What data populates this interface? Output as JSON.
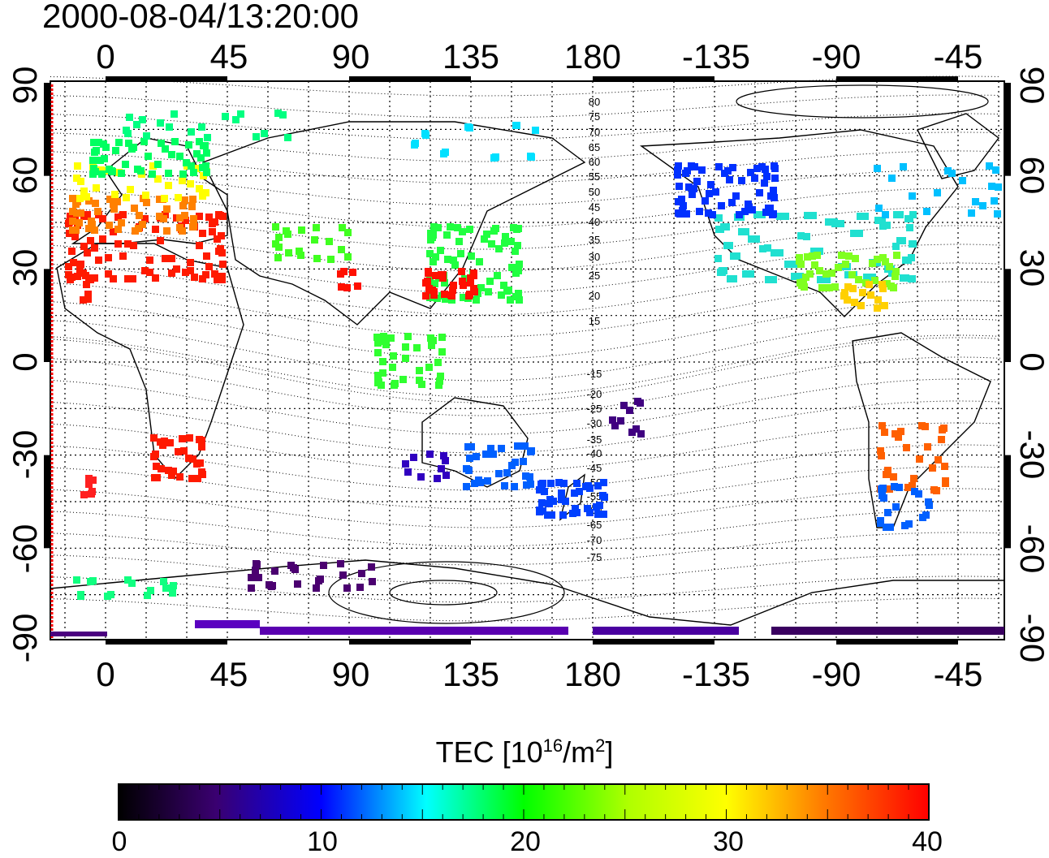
{
  "title": "2000-08-04/13:20:00",
  "map": {
    "top_axis_labels": [
      "0",
      "45",
      "90",
      "135",
      "180",
      "-135",
      "-90",
      "-45"
    ],
    "bottom_axis_labels": [
      "0",
      "45",
      "90",
      "135",
      "180",
      "-135",
      "-90",
      "-45"
    ],
    "left_axis_labels": [
      "90",
      "60",
      "30",
      "0",
      "-30",
      "-60",
      "-90"
    ],
    "right_axis_labels": [
      "90",
      "60",
      "30",
      "0",
      "-30",
      "-60",
      "-90"
    ],
    "contour_labels": [
      "80",
      "75",
      "70",
      "65",
      "60",
      "55",
      "50",
      "45",
      "40",
      "35",
      "30",
      "25",
      "20",
      "15",
      "-15",
      "-20",
      "-25",
      "-30",
      "-35",
      "-40",
      "-45",
      "-50",
      "-55",
      "-60",
      "-65",
      "-70",
      "-75"
    ],
    "colors": {
      "grid": "#000000",
      "coast": "#000000",
      "terminator": "#ff0000"
    }
  },
  "colorbar": {
    "title_main": "TEC  [10",
    "title_exp1": "16",
    "title_mid": "/m",
    "title_exp2": "2",
    "title_end": "]",
    "tick_labels": [
      "0",
      "10",
      "20",
      "30",
      "40"
    ],
    "colormap": [
      "#000000",
      "#4b0082",
      "#0000ff",
      "#00ffff",
      "#00ff00",
      "#ffff00",
      "#ff7f00",
      "#ff0000"
    ]
  }
}
